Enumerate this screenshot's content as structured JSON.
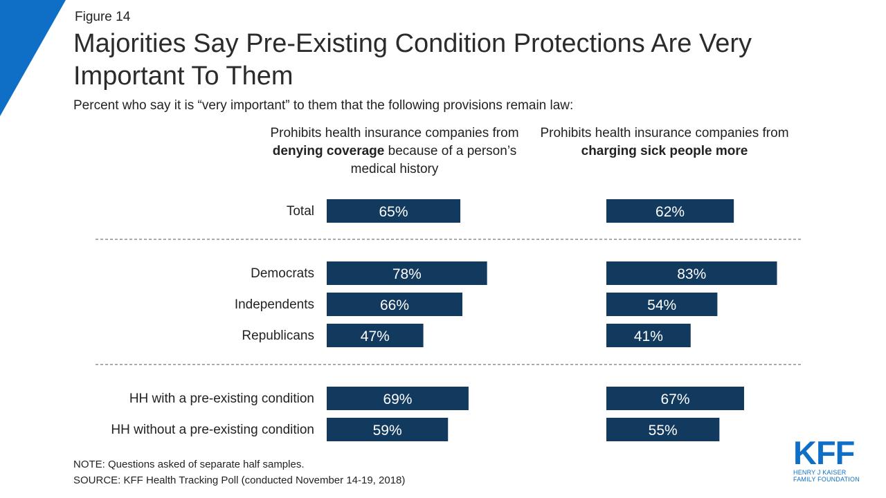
{
  "figure_label": "Figure 14",
  "title": "Majorities Say Pre-Existing Condition Protections Are Very Important To Them",
  "subtitle": "Percent who say it is “very important” to them that the following provisions remain law:",
  "panels": [
    {
      "header_pre": "Prohibits health insurance companies from ",
      "header_bold": "denying coverage",
      "header_post": " because of a person’s medical history"
    },
    {
      "header_pre": "Prohibits health insurance companies from ",
      "header_bold": "charging sick people more",
      "header_post": ""
    }
  ],
  "chart_data": {
    "type": "bar",
    "orientation": "horizontal",
    "categories": [
      "Total",
      "Democrats",
      "Independents",
      "Republicans",
      "HH with a pre-existing condition",
      "HH without a pre-existing condition"
    ],
    "groups": [
      [
        0
      ],
      [
        1,
        2,
        3
      ],
      [
        4,
        5
      ]
    ],
    "series": [
      {
        "values": [
          65,
          78,
          66,
          47,
          69,
          59
        ],
        "labels": [
          "65%",
          "78%",
          "66%",
          "47%",
          "69%",
          "59%"
        ]
      },
      {
        "values": [
          62,
          83,
          54,
          41,
          67,
          55
        ],
        "labels": [
          "62%",
          "83%",
          "54%",
          "41%",
          "67%",
          "55%"
        ]
      }
    ],
    "unit": "%",
    "xlim": [
      0,
      100
    ],
    "bar_color": "#123a5e",
    "label_color": "#ffffff",
    "separator": "dashed"
  },
  "colors": {
    "accent_blue": "#0f6fc6",
    "bar": "#123a5e"
  },
  "notes": {
    "note": "NOTE: Questions asked of separate half samples.",
    "source": "SOURCE: KFF Health Tracking Poll (conducted November 14-19, 2018)"
  },
  "logo": {
    "mark": "KFF",
    "line1": "HENRY J KAISER",
    "line2": "FAMILY FOUNDATION"
  }
}
